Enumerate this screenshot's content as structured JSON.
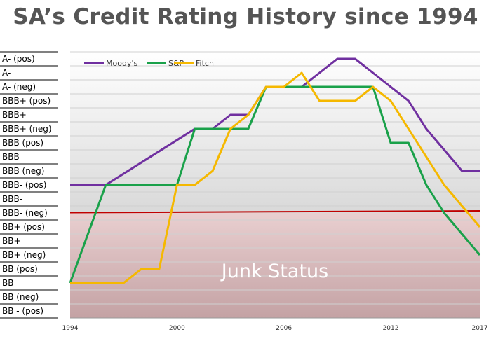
{
  "title": "SA’s Credit Rating History since 1994",
  "chart_data": {
    "type": "line",
    "title": "SA’s Credit Rating History since 1994",
    "xlim": [
      1994,
      2017
    ],
    "x_ticks": [
      "1994",
      "2000",
      "2006",
      "2012",
      "2017"
    ],
    "y_ticks": [
      "A- (pos)",
      "A-",
      "A- (neg)",
      "BBB+ (pos)",
      "BBB+",
      "BBB+ (neg)",
      "BBB (pos)",
      "BBB",
      "BBB (neg)",
      "BBB- (pos)",
      "BBB-",
      "BBB- (neg)",
      "BB+ (pos)",
      "BB+",
      "BB+ (neg)",
      "BB (pos)",
      "BB",
      "BB (neg)",
      "BB - (pos)"
    ],
    "junk_threshold": "BBB- (neg)",
    "junk_label": "Junk Status",
    "grid": true,
    "legend_position": "top-left",
    "series": [
      {
        "name": "Moody's",
        "color": "#7030a0",
        "points": [
          [
            1994,
            "BBB- (pos)"
          ],
          [
            1996,
            "BBB- (pos)"
          ],
          [
            2001,
            "BBB+ (neg)"
          ],
          [
            2002,
            "BBB+ (neg)"
          ],
          [
            2003,
            "BBB+"
          ],
          [
            2004,
            "BBB+"
          ],
          [
            2005,
            "A- (neg)"
          ],
          [
            2007,
            "A- (neg)"
          ],
          [
            2008,
            "A-"
          ],
          [
            2009,
            "A- (pos)"
          ],
          [
            2010,
            "A- (pos)"
          ],
          [
            2011,
            "A-"
          ],
          [
            2012,
            "A- (neg)"
          ],
          [
            2013,
            "BBB+ (pos)"
          ],
          [
            2014,
            "BBB+ (neg)"
          ],
          [
            2016,
            "BBB (neg)"
          ],
          [
            2017,
            "BBB (neg)"
          ]
        ]
      },
      {
        "name": "S&P",
        "color": "#1aa14a",
        "points": [
          [
            1994,
            "BB"
          ],
          [
            1996,
            "BBB- (pos)"
          ],
          [
            2000,
            "BBB- (pos)"
          ],
          [
            2001,
            "BBB+ (neg)"
          ],
          [
            2003,
            "BBB+ (neg)"
          ],
          [
            2004,
            "BBB+ (neg)"
          ],
          [
            2005,
            "A- (neg)"
          ],
          [
            2011,
            "A- (neg)"
          ],
          [
            2012,
            "BBB (pos)"
          ],
          [
            2013,
            "BBB (pos)"
          ],
          [
            2014,
            "BBB- (pos)"
          ],
          [
            2015,
            "BBB- (neg)"
          ],
          [
            2017,
            "BB+ (neg)"
          ]
        ]
      },
      {
        "name": "Fitch",
        "color": "#f5b800",
        "points": [
          [
            1994,
            "BB"
          ],
          [
            1997,
            "BB"
          ],
          [
            1998,
            "BB (pos)"
          ],
          [
            1999,
            "BB (pos)"
          ],
          [
            2000,
            "BBB- (pos)"
          ],
          [
            2001,
            "BBB- (pos)"
          ],
          [
            2002,
            "BBB (neg)"
          ],
          [
            2003,
            "BBB+ (neg)"
          ],
          [
            2004,
            "BBB+"
          ],
          [
            2005,
            "A- (neg)"
          ],
          [
            2006,
            "A- (neg)"
          ],
          [
            2007,
            "A-"
          ],
          [
            2008,
            "BBB+ (pos)"
          ],
          [
            2010,
            "BBB+ (pos)"
          ],
          [
            2011,
            "A- (neg)"
          ],
          [
            2012,
            "BBB+ (pos)"
          ],
          [
            2013,
            "BBB+ (neg)"
          ],
          [
            2014,
            "BBB"
          ],
          [
            2015,
            "BBB- (pos)"
          ],
          [
            2017,
            "BB+ (pos)"
          ]
        ]
      }
    ]
  }
}
